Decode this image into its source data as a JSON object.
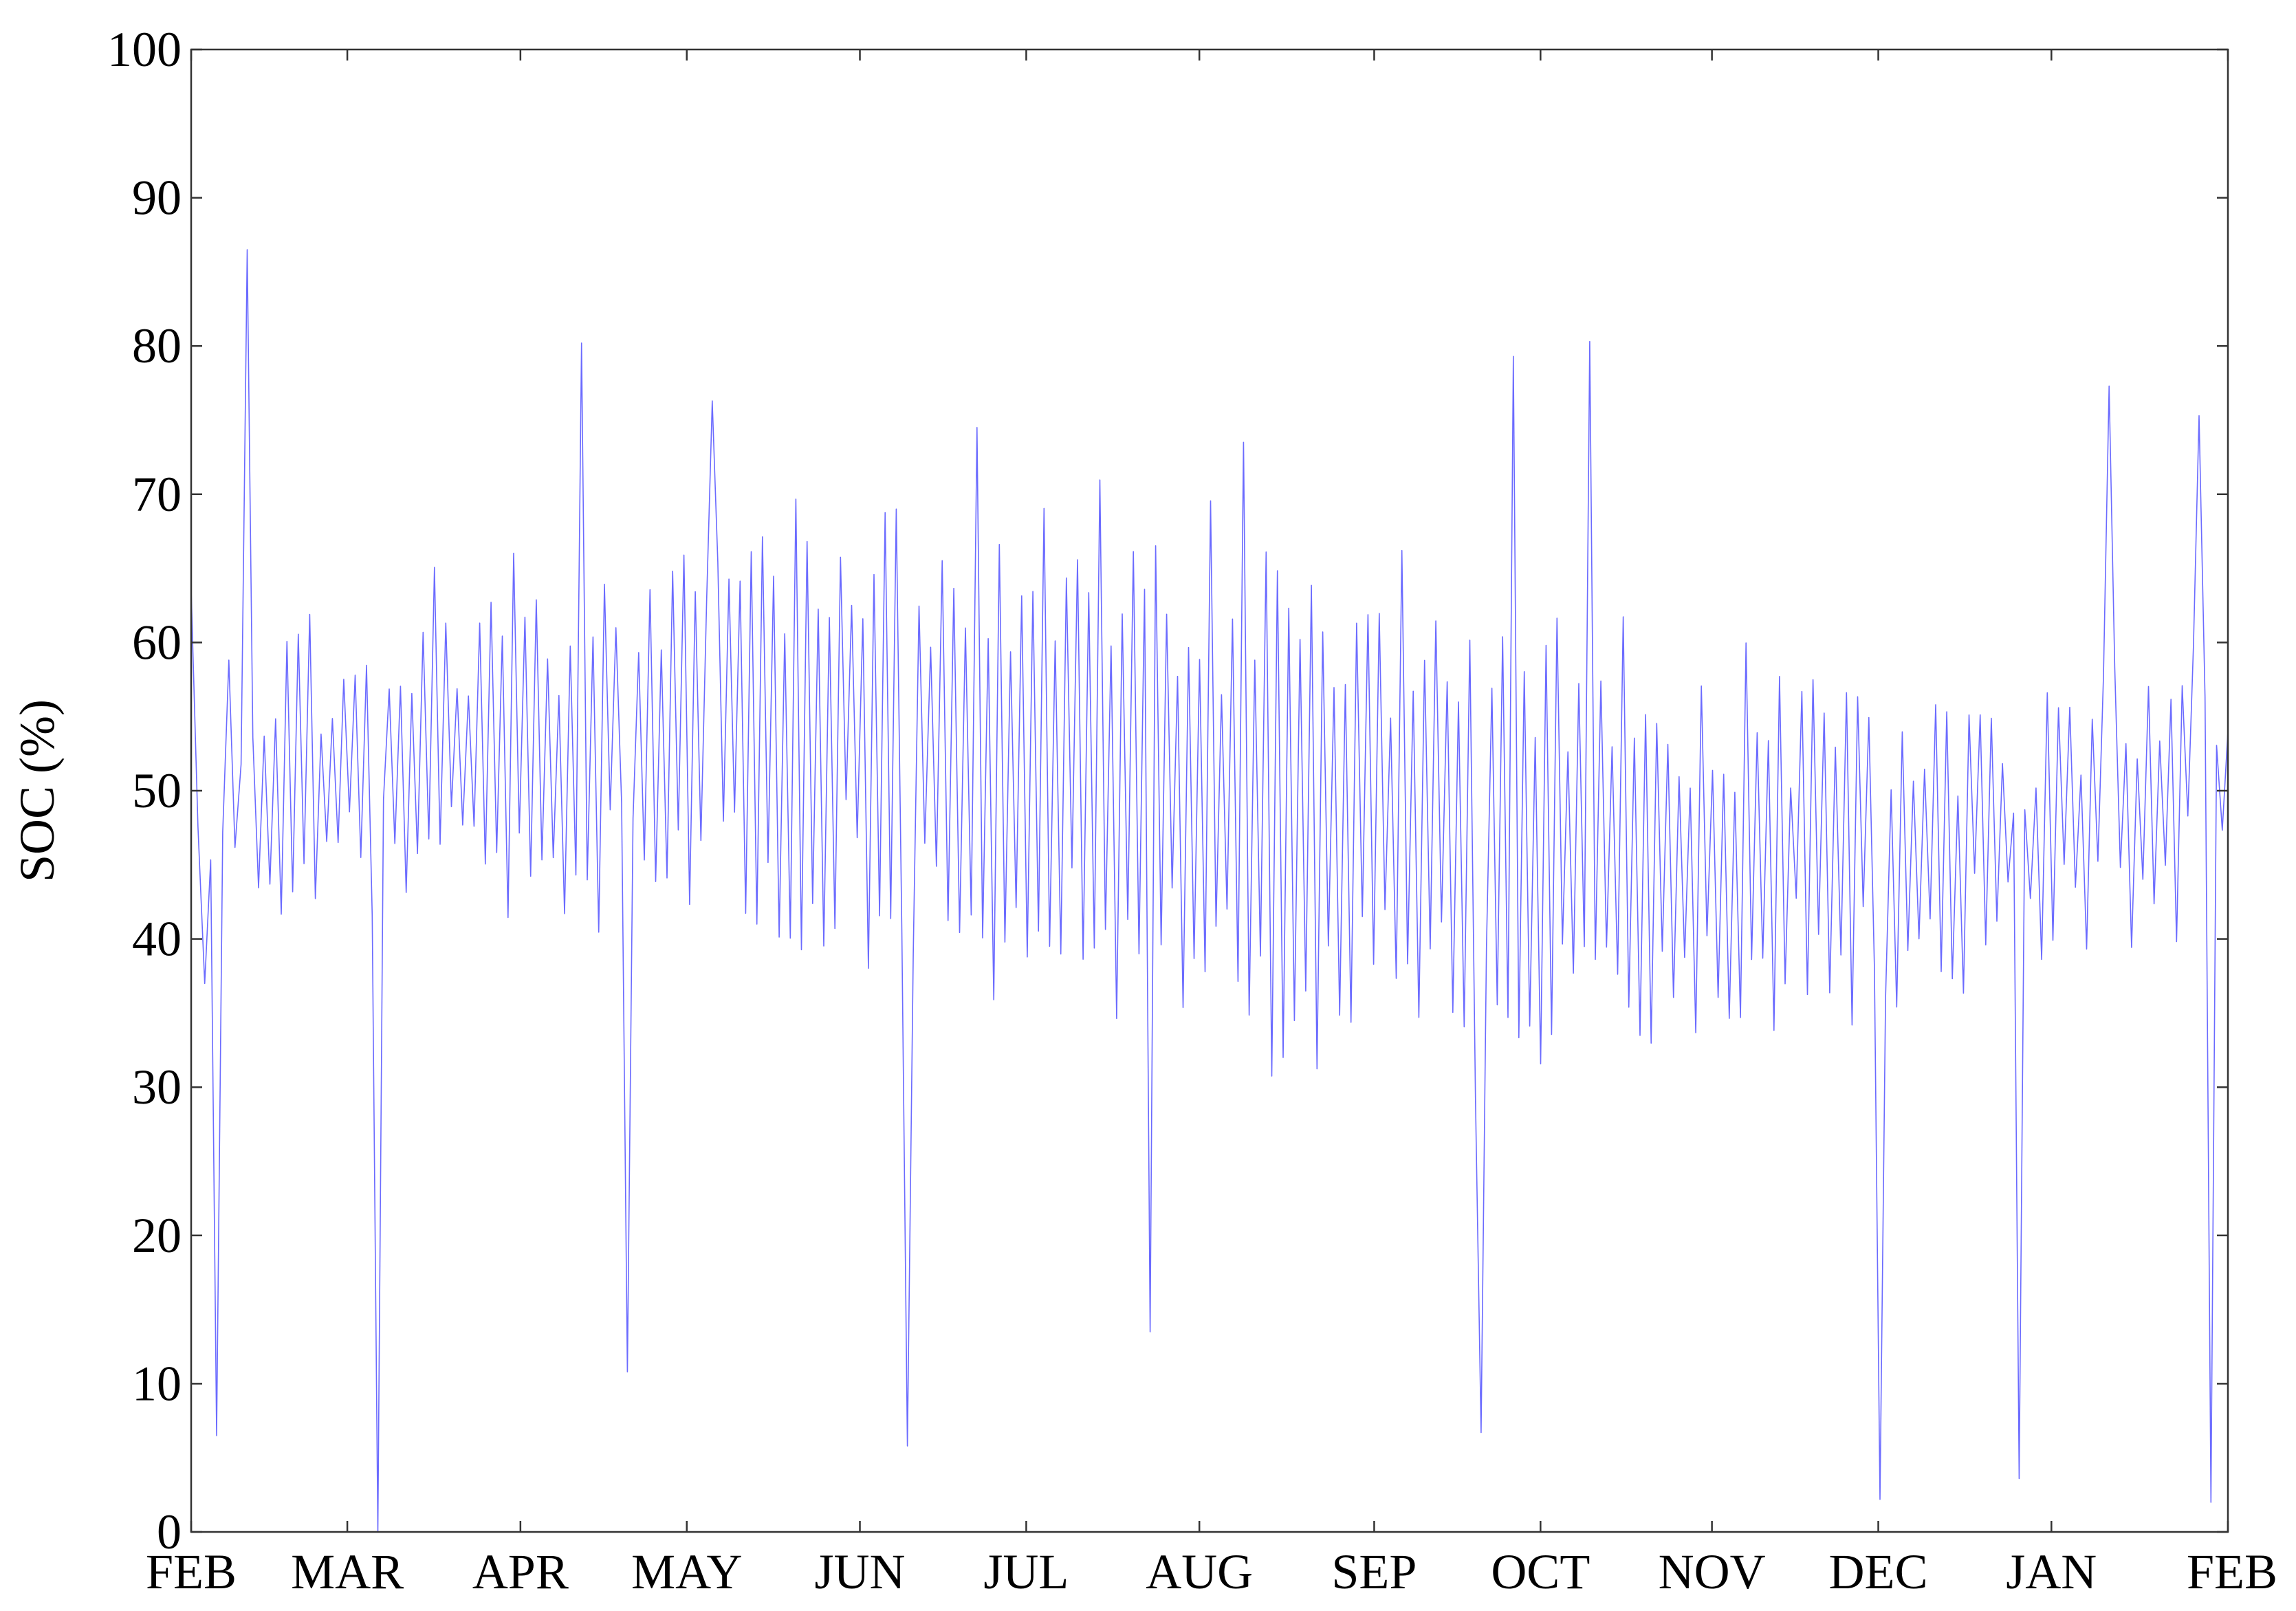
{
  "chart_data": {
    "type": "line",
    "title": "",
    "xlabel": "",
    "ylabel": "SOC (%)",
    "ylim": [
      0,
      100
    ],
    "yticks": [
      0,
      10,
      20,
      30,
      40,
      50,
      60,
      70,
      80,
      90,
      100
    ],
    "x_range_months": [
      0,
      12
    ],
    "xticks": [
      {
        "label": "FEB",
        "month": 0
      },
      {
        "label": "MAR",
        "month": 0.92
      },
      {
        "label": "APR",
        "month": 1.94
      },
      {
        "label": "MAY",
        "month": 2.92
      },
      {
        "label": "JUN",
        "month": 3.94
      },
      {
        "label": "JUL",
        "month": 4.92
      },
      {
        "label": "AUG",
        "month": 5.94
      },
      {
        "label": "SEP",
        "month": 6.97
      },
      {
        "label": "OCT",
        "month": 7.95
      },
      {
        "label": "NOV",
        "month": 8.96
      },
      {
        "label": "DEC",
        "month": 9.94
      },
      {
        "label": "JAN",
        "month": 10.96
      },
      {
        "label": "FEB",
        "month": 12
      }
    ],
    "grid": false,
    "legend": "none",
    "series": [
      {
        "color": "#6b6bff",
        "description_points": [
          {
            "month": 0.0,
            "value": 63.5
          },
          {
            "month": 0.08,
            "value": 37.0
          },
          {
            "month": 0.15,
            "value": 6.5
          },
          {
            "month": 0.33,
            "value": 86.5
          },
          {
            "month": 1.1,
            "value": 0.0
          },
          {
            "month": 2.3,
            "value": 80.2
          },
          {
            "month": 2.57,
            "value": 10.8
          },
          {
            "month": 3.07,
            "value": 76.3
          },
          {
            "month": 4.22,
            "value": 5.8
          },
          {
            "month": 4.63,
            "value": 74.5
          },
          {
            "month": 5.65,
            "value": 13.5
          },
          {
            "month": 6.2,
            "value": 73.5
          },
          {
            "month": 7.6,
            "value": 6.7
          },
          {
            "month": 7.79,
            "value": 79.3
          },
          {
            "month": 8.24,
            "value": 80.3
          },
          {
            "month": 9.95,
            "value": 2.2
          },
          {
            "month": 10.77,
            "value": 3.6
          },
          {
            "month": 11.3,
            "value": 77.3
          },
          {
            "month": 11.83,
            "value": 75.3
          },
          {
            "month": 11.9,
            "value": 2.0
          },
          {
            "month": 12.0,
            "value": 54.0
          }
        ]
      }
    ]
  }
}
